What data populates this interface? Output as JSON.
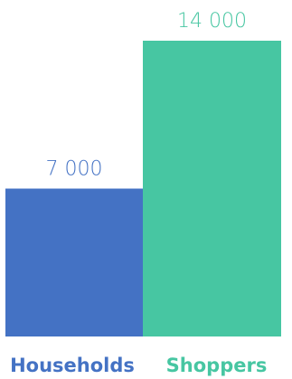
{
  "chart_data": {
    "type": "bar",
    "categories": [
      "Households",
      "Shoppers"
    ],
    "values": [
      7000,
      14000
    ],
    "value_labels": [
      "7 000",
      "14 000"
    ],
    "colors": [
      "#4472C4",
      "#47C6A2"
    ],
    "title": "",
    "xlabel": "",
    "ylabel": "",
    "ylim": [
      0,
      14000
    ],
    "grid": false,
    "legend": "none"
  }
}
